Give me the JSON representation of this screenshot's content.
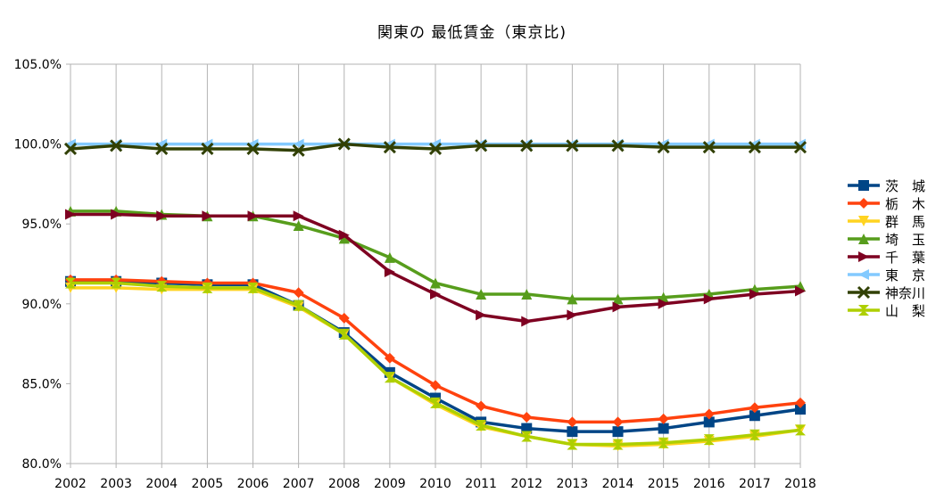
{
  "chart_data": {
    "type": "line",
    "title": "関東の 最低賃金（東京比)",
    "xlabel": "",
    "ylabel": "",
    "ylim": [
      0.8,
      1.05
    ],
    "y_ticks": [
      "80.0%",
      "85.0%",
      "90.0%",
      "95.0%",
      "100.0%",
      "105.0%"
    ],
    "grid": "vertical",
    "legend_position": "right",
    "categories": [
      "2002",
      "2003",
      "2004",
      "2005",
      "2006",
      "2007",
      "2008",
      "2009",
      "2010",
      "2011",
      "2012",
      "2013",
      "2014",
      "2015",
      "2016",
      "2017",
      "2018"
    ],
    "series": [
      {
        "name": "茨　城",
        "color": "#004586",
        "marker": "square",
        "values": [
          0.914,
          0.914,
          0.913,
          0.912,
          0.912,
          0.899,
          0.882,
          0.857,
          0.841,
          0.826,
          0.822,
          0.82,
          0.82,
          0.822,
          0.826,
          0.83,
          0.834
        ]
      },
      {
        "name": "栃　木",
        "color": "#ff420e",
        "marker": "diamond",
        "values": [
          0.915,
          0.915,
          0.914,
          0.913,
          0.913,
          0.907,
          0.891,
          0.866,
          0.849,
          0.836,
          0.829,
          0.826,
          0.826,
          0.828,
          0.831,
          0.835,
          0.838
        ]
      },
      {
        "name": "群　馬",
        "color": "#ffd320",
        "marker": "triangle-down",
        "values": [
          0.91,
          0.91,
          0.909,
          0.909,
          0.909,
          0.898,
          0.881,
          0.854,
          0.837,
          0.823,
          0.817,
          0.812,
          0.811,
          0.812,
          0.814,
          0.817,
          0.821
        ]
      },
      {
        "name": "埼　玉",
        "color": "#579d1c",
        "marker": "triangle-up",
        "values": [
          0.958,
          0.958,
          0.956,
          0.955,
          0.955,
          0.949,
          0.941,
          0.929,
          0.913,
          0.906,
          0.906,
          0.903,
          0.903,
          0.904,
          0.906,
          0.909,
          0.911
        ]
      },
      {
        "name": "千　葉",
        "color": "#7e0021",
        "marker": "triangle-right",
        "values": [
          0.956,
          0.956,
          0.955,
          0.955,
          0.955,
          0.955,
          0.943,
          0.92,
          0.906,
          0.893,
          0.889,
          0.893,
          0.898,
          0.9,
          0.903,
          0.906,
          0.908
        ]
      },
      {
        "name": "東　京",
        "color": "#83caff",
        "marker": "triangle-left",
        "values": [
          1.0,
          1.0,
          1.0,
          1.0,
          1.0,
          1.0,
          1.0,
          1.0,
          1.0,
          1.0,
          1.0,
          1.0,
          1.0,
          1.0,
          1.0,
          1.0,
          1.0
        ]
      },
      {
        "name": "神奈川",
        "color": "#314004",
        "marker": "x",
        "values": [
          0.997,
          0.999,
          0.997,
          0.997,
          0.997,
          0.996,
          1.0,
          0.998,
          0.997,
          0.999,
          0.999,
          0.999,
          0.999,
          0.998,
          0.998,
          0.998,
          0.998
        ]
      },
      {
        "name": "山　梨",
        "color": "#aecf00",
        "marker": "hourglass",
        "values": [
          0.913,
          0.913,
          0.911,
          0.91,
          0.91,
          0.899,
          0.881,
          0.854,
          0.838,
          0.824,
          0.817,
          0.812,
          0.812,
          0.813,
          0.815,
          0.818,
          0.821
        ]
      }
    ]
  }
}
